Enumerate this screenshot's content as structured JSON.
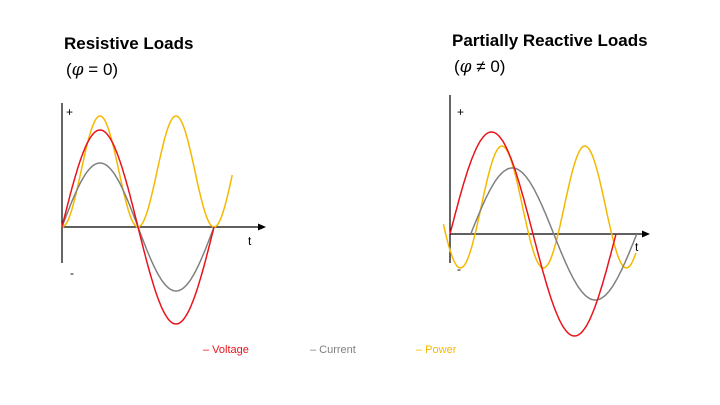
{
  "panels": [
    {
      "title": "Resistive Loads",
      "subtitle_open": "(",
      "phi": "φ",
      "subtitle_close": " = 0)",
      "plus_label": "+",
      "minus_label": "-",
      "t_label": "t",
      "phase_shift_deg": 0
    },
    {
      "title": "Partially Reactive Loads",
      "subtitle_open": "(",
      "phi": "φ",
      "subtitle_close": "  ≠ 0)",
      "plus_label": "+",
      "minus_label": "-",
      "t_label": "t",
      "phase_shift_deg": 45
    }
  ],
  "legend": {
    "voltage": "– Voltage",
    "current": "– Current",
    "power": "– Power"
  },
  "colors": {
    "voltage": "#e8141c",
    "current": "#808080",
    "power": "#f5b800",
    "axis": "#000000"
  }
}
